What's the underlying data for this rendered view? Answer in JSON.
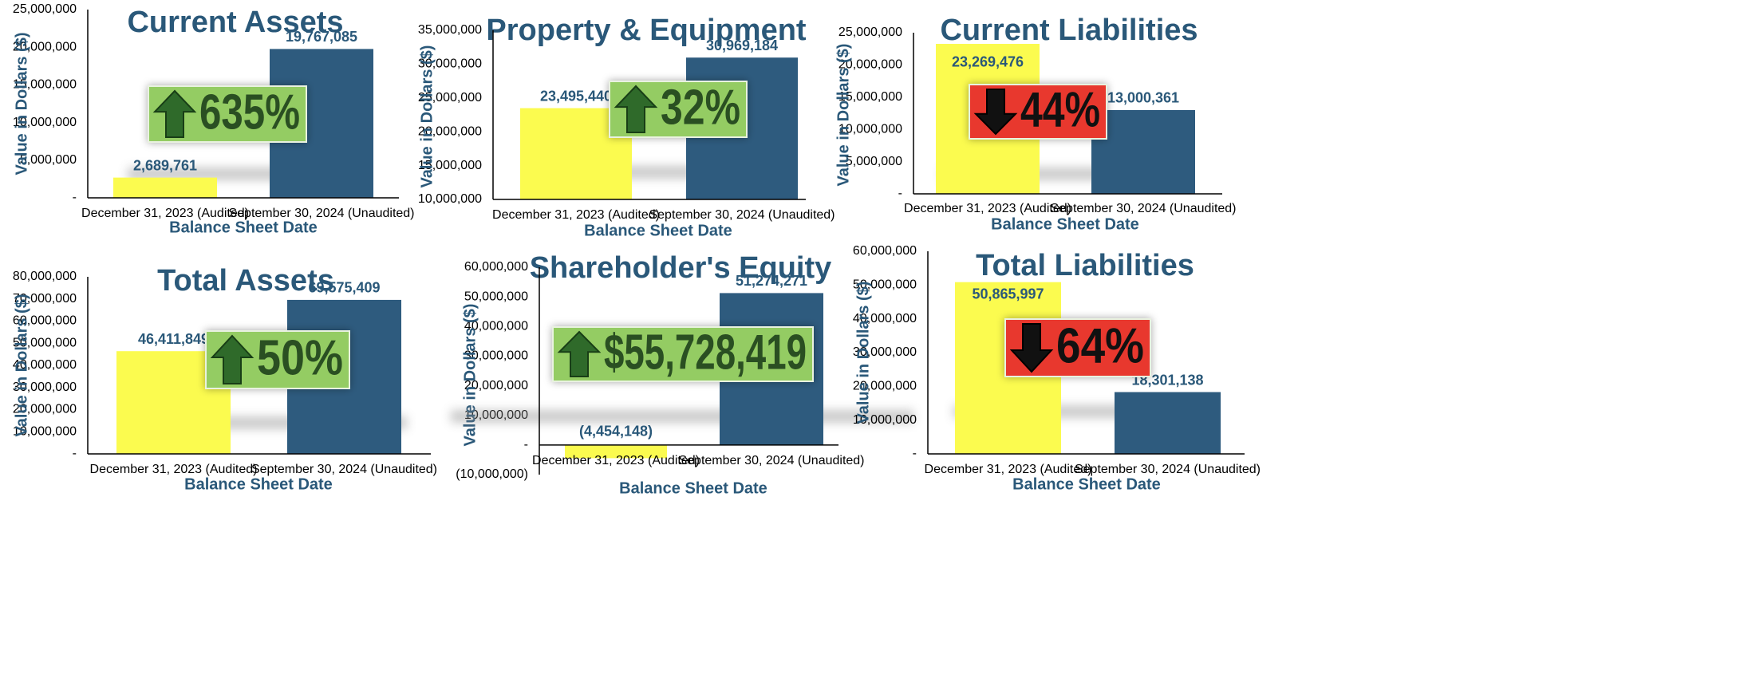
{
  "colors": {
    "title": "#2a5879",
    "bar_audited": "#fbfb4f",
    "bar_unaudited": "#2e5b7e",
    "badge_up_bg": "#94cc63",
    "badge_up_text": "#2a4f22",
    "badge_down_bg": "#e8392e",
    "badge_down_text": "#111111"
  },
  "chart_data": [
    {
      "type": "bar",
      "title": "Current Assets",
      "categories": [
        "December 31, 2023 (Audited)",
        "September 30, 2024 (Unaudited)"
      ],
      "values": [
        2689761,
        19767085
      ],
      "value_labels": [
        "2,689,761",
        "19,767,085"
      ],
      "xlabel": "Balance Sheet Date",
      "ylabel": "Value in Dollars ($)",
      "ylim": [
        0,
        25000000
      ],
      "yticks": [
        "-",
        "5,000,000",
        "10,000,000",
        "15,000,000",
        "20,000,000",
        "25,000,000"
      ],
      "badge": {
        "text": "635%",
        "direction": "up",
        "icon": "up-arrow-icon"
      }
    },
    {
      "type": "bar",
      "title": "Property & Equipment",
      "categories": [
        "December 31, 2023 (Audited)",
        "September 30, 2024 (Unaudited)"
      ],
      "values": [
        23495440,
        30969184
      ],
      "value_labels": [
        "23,495,440",
        "30,969,184"
      ],
      "xlabel": "Balance Sheet Date",
      "ylabel": "Value in Dollars ($)",
      "ylim": [
        10000000,
        35000000
      ],
      "yticks": [
        "10,000,000",
        "15,000,000",
        "20,000,000",
        "25,000,000",
        "30,000,000",
        "35,000,000"
      ],
      "badge": {
        "text": "32%",
        "direction": "up",
        "icon": "up-arrow-icon"
      }
    },
    {
      "type": "bar",
      "title": "Current Liabilities",
      "categories": [
        "December 31, 2023 (Audited)",
        "September 30, 2024 (Unaudited)"
      ],
      "values": [
        23269476,
        13000361
      ],
      "value_labels": [
        "23,269,476",
        "13,000,361"
      ],
      "xlabel": "Balance Sheet Date",
      "ylabel": "Value in Dollars ($)",
      "ylim": [
        0,
        25000000
      ],
      "yticks": [
        "-",
        "5,000,000",
        "10,000,000",
        "15,000,000",
        "20,000,000",
        "25,000,000"
      ],
      "badge": {
        "text": "44%",
        "direction": "down",
        "icon": "down-arrow-icon"
      }
    },
    {
      "type": "bar",
      "title": "Total Assets",
      "categories": [
        "December 31, 2023 (Audited)",
        "September 30, 2024 (Unaudited)"
      ],
      "values": [
        46411849,
        69575409
      ],
      "value_labels": [
        "46,411,849",
        "69,575,409"
      ],
      "xlabel": "Balance Sheet Date",
      "ylabel": "Value in Dollars ($)",
      "ylim": [
        0,
        80000000
      ],
      "yticks": [
        "-",
        "10,000,000",
        "20,000,000",
        "30,000,000",
        "40,000,000",
        "50,000,000",
        "60,000,000",
        "70,000,000",
        "80,000,000"
      ],
      "badge": {
        "text": "50%",
        "direction": "up",
        "icon": "up-arrow-icon"
      }
    },
    {
      "type": "bar",
      "title": "Shareholder's Equity",
      "categories": [
        "December 31, 2023 (Audited)",
        "September 30, 2024 (Unaudited)"
      ],
      "values": [
        -4454148,
        51274271
      ],
      "value_labels": [
        "(4,454,148)",
        "51,274,271"
      ],
      "xlabel": "Balance Sheet Date",
      "ylabel": "Value in Dollars ($)",
      "ylim": [
        -10000000,
        60000000
      ],
      "yticks": [
        "(10,000,000)",
        "-",
        "10,000,000",
        "20,000,000",
        "30,000,000",
        "40,000,000",
        "50,000,000",
        "60,000,000"
      ],
      "badge": {
        "text": "$55,728,419",
        "direction": "up",
        "icon": "up-arrow-icon"
      }
    },
    {
      "type": "bar",
      "title": "Total Liabilities",
      "categories": [
        "December 31, 2023 (Audited)",
        "September 30, 2024 (Unaudited)"
      ],
      "values": [
        50865997,
        18301138
      ],
      "value_labels": [
        "50,865,997",
        "18,301,138"
      ],
      "xlabel": "Balance Sheet Date",
      "ylabel": "Value in Dollars ($)",
      "ylim": [
        0,
        60000000
      ],
      "yticks": [
        "-",
        "10,000,000",
        "20,000,000",
        "30,000,000",
        "40,000,000",
        "50,000,000",
        "60,000,000"
      ],
      "badge": {
        "text": "64%",
        "direction": "down",
        "icon": "down-arrow-icon"
      }
    }
  ]
}
